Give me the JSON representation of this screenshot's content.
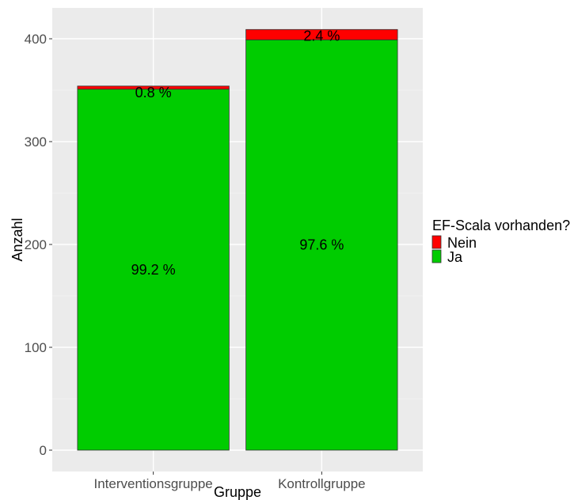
{
  "chart_data": {
    "type": "bar",
    "stacked": true,
    "categories": [
      "Interventionsgruppe",
      "Kontrollgruppe"
    ],
    "series": [
      {
        "name": "Ja",
        "values": [
          351,
          399
        ],
        "color": "#00cc00",
        "labels": [
          "99.2 %",
          "97.6 %"
        ]
      },
      {
        "name": "Nein",
        "values": [
          3,
          10
        ],
        "color": "#ff0000",
        "labels": [
          "0.8 %",
          "2.4 %"
        ]
      }
    ],
    "xlabel": "Gruppe",
    "ylabel": "Anzahl",
    "ylim": [
      0,
      430
    ],
    "yticks": [
      0,
      100,
      200,
      300,
      400
    ],
    "grid": true,
    "background": "#ebebeb",
    "legend": {
      "title": "EF-Scala vorhanden?",
      "position": "right",
      "entries": [
        {
          "label": "Nein",
          "color": "#ff0000"
        },
        {
          "label": "Ja",
          "color": "#00cc00"
        }
      ]
    }
  }
}
